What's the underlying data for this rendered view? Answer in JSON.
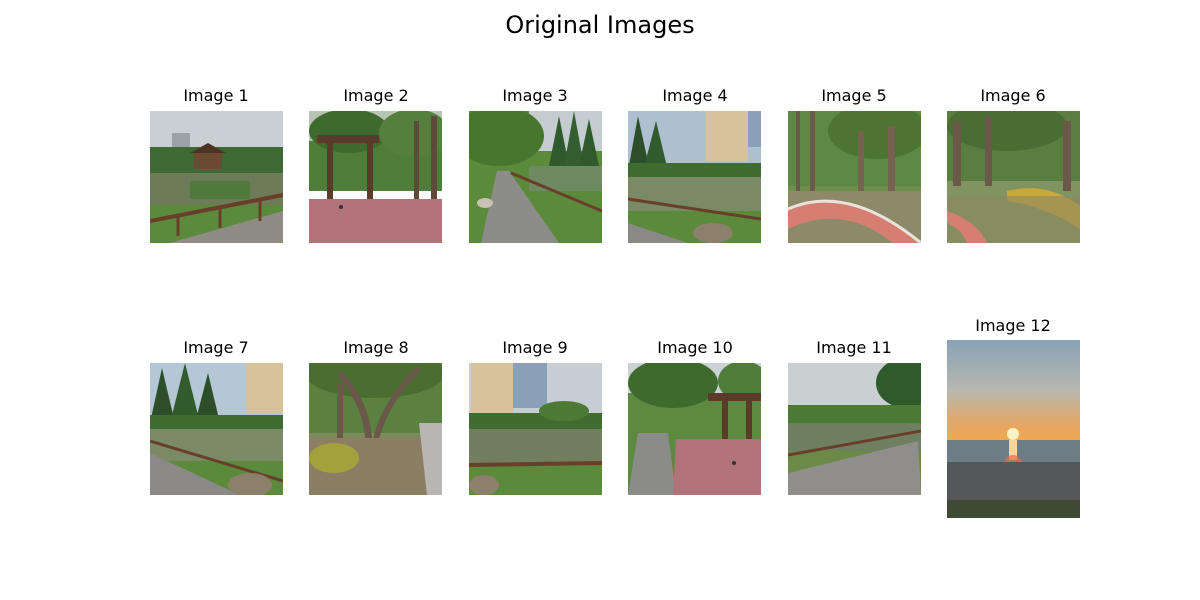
{
  "figure": {
    "title": "Original Images"
  },
  "images": [
    {
      "title": "Image 1",
      "scene": "pond-gazebo"
    },
    {
      "title": "Image 2",
      "scene": "pergola-plaza"
    },
    {
      "title": "Image 3",
      "scene": "curved-path"
    },
    {
      "title": "Image 4",
      "scene": "pond-building"
    },
    {
      "title": "Image 5",
      "scene": "brick-path-trees"
    },
    {
      "title": "Image 6",
      "scene": "banyan-path"
    },
    {
      "title": "Image 7",
      "scene": "pond-building"
    },
    {
      "title": "Image 8",
      "scene": "banyan-grove"
    },
    {
      "title": "Image 9",
      "scene": "pond-building"
    },
    {
      "title": "Image 10",
      "scene": "pergola-path"
    },
    {
      "title": "Image 11",
      "scene": "pond-walkway"
    },
    {
      "title": "Image 12",
      "scene": "sunset-beach"
    }
  ]
}
